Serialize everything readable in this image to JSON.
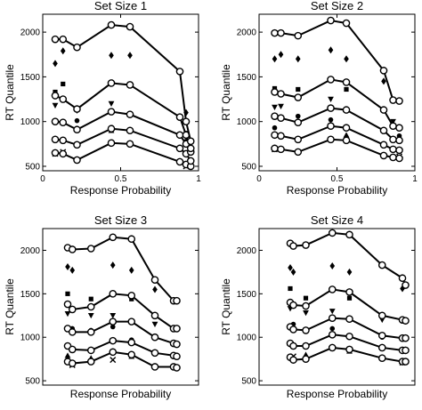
{
  "chart_data": [
    {
      "type": "scatter",
      "title": "Set Size 1",
      "xlabel": "Response Probability",
      "ylabel": "RT Quantile",
      "xlim": [
        0,
        1
      ],
      "ylim": [
        450,
        2200
      ],
      "xticks": [
        0,
        0.5,
        1
      ],
      "xtick_labels": [
        "0",
        "0.5",
        "1"
      ],
      "yticks": [
        500,
        1000,
        1500,
        2000
      ],
      "ytick_labels": [
        "500",
        "1000",
        "1500",
        "2000"
      ],
      "grid": false,
      "legend": "none",
      "x": [
        0.08,
        0.13,
        0.22,
        0.44,
        0.56,
        0.88,
        0.92,
        0.95
      ],
      "quantile_lines": [
        [
          650,
          640,
          570,
          760,
          750,
          550,
          520,
          500
        ],
        [
          800,
          790,
          740,
          920,
          900,
          700,
          640,
          560
        ],
        [
          1000,
          990,
          910,
          1110,
          1080,
          850,
          750,
          660
        ],
        [
          1290,
          1250,
          1140,
          1430,
          1410,
          1050,
          850,
          700
        ],
        [
          1920,
          1920,
          1830,
          2080,
          2060,
          1560,
          1000,
          780
        ]
      ],
      "observed_points": [
        {
          "x": 0.08,
          "y": 1650,
          "marker": "diamond"
        },
        {
          "x": 0.13,
          "y": 1790,
          "marker": "diamond"
        },
        {
          "x": 0.44,
          "y": 1740,
          "marker": "diamond"
        },
        {
          "x": 0.56,
          "y": 1740,
          "marker": "diamond"
        },
        {
          "x": 0.92,
          "y": 1100,
          "marker": "diamond"
        },
        {
          "x": 0.08,
          "y": 1330,
          "marker": "square"
        },
        {
          "x": 0.13,
          "y": 1420,
          "marker": "square"
        },
        {
          "x": 0.56,
          "y": 1420,
          "marker": "square"
        },
        {
          "x": 0.92,
          "y": 870,
          "marker": "square"
        },
        {
          "x": 0.08,
          "y": 1180,
          "marker": "triangle-down"
        },
        {
          "x": 0.22,
          "y": 1120,
          "marker": "triangle-down"
        },
        {
          "x": 0.44,
          "y": 1200,
          "marker": "triangle-down"
        },
        {
          "x": 0.08,
          "y": 1000,
          "marker": "dot"
        },
        {
          "x": 0.22,
          "y": 1010,
          "marker": "dot"
        },
        {
          "x": 0.44,
          "y": 1100,
          "marker": "dot"
        },
        {
          "x": 0.92,
          "y": 780,
          "marker": "dot"
        },
        {
          "x": 0.08,
          "y": 810,
          "marker": "triangle-up"
        },
        {
          "x": 0.44,
          "y": 900,
          "marker": "triangle-up"
        },
        {
          "x": 0.95,
          "y": 660,
          "marker": "triangle-up"
        },
        {
          "x": 0.08,
          "y": 640,
          "marker": "x"
        },
        {
          "x": 0.13,
          "y": 660,
          "marker": "x"
        },
        {
          "x": 0.92,
          "y": 500,
          "marker": "x"
        }
      ]
    },
    {
      "type": "scatter",
      "title": "Set Size 2",
      "xlabel": "Response Probability",
      "ylabel": "RT Quantile",
      "xlim": [
        0,
        1
      ],
      "ylim": [
        450,
        2200
      ],
      "xticks": [
        0,
        0.5,
        1
      ],
      "xtick_labels": [
        "0",
        "0.5",
        "1"
      ],
      "yticks": [
        500,
        1000,
        1500,
        2000
      ],
      "ytick_labels": [
        "500",
        "1000",
        "1500",
        "2000"
      ],
      "grid": false,
      "legend": "none",
      "x": [
        0.1,
        0.14,
        0.25,
        0.46,
        0.56,
        0.8,
        0.86,
        0.9
      ],
      "quantile_lines": [
        [
          700,
          690,
          660,
          800,
          790,
          620,
          600,
          590
        ],
        [
          850,
          840,
          800,
          950,
          930,
          740,
          690,
          680
        ],
        [
          1060,
          1040,
          990,
          1150,
          1130,
          900,
          800,
          790
        ],
        [
          1330,
          1310,
          1270,
          1470,
          1440,
          1130,
          950,
          930
        ],
        [
          1990,
          1990,
          1960,
          2130,
          2100,
          1570,
          1240,
          1230
        ]
      ],
      "observed_points": [
        {
          "x": 0.1,
          "y": 1700,
          "marker": "diamond"
        },
        {
          "x": 0.14,
          "y": 1750,
          "marker": "diamond"
        },
        {
          "x": 0.25,
          "y": 1700,
          "marker": "diamond"
        },
        {
          "x": 0.46,
          "y": 1800,
          "marker": "diamond"
        },
        {
          "x": 0.56,
          "y": 1700,
          "marker": "diamond"
        },
        {
          "x": 0.8,
          "y": 1450,
          "marker": "diamond"
        },
        {
          "x": 0.1,
          "y": 1370,
          "marker": "square"
        },
        {
          "x": 0.25,
          "y": 1360,
          "marker": "square"
        },
        {
          "x": 0.56,
          "y": 1360,
          "marker": "square"
        },
        {
          "x": 0.1,
          "y": 1160,
          "marker": "triangle-down"
        },
        {
          "x": 0.14,
          "y": 1170,
          "marker": "triangle-down"
        },
        {
          "x": 0.46,
          "y": 1250,
          "marker": "triangle-down"
        },
        {
          "x": 0.86,
          "y": 1000,
          "marker": "triangle-down"
        },
        {
          "x": 0.1,
          "y": 930,
          "marker": "dot"
        },
        {
          "x": 0.25,
          "y": 1060,
          "marker": "dot"
        },
        {
          "x": 0.46,
          "y": 1020,
          "marker": "dot"
        },
        {
          "x": 0.9,
          "y": 840,
          "marker": "dot"
        },
        {
          "x": 0.14,
          "y": 850,
          "marker": "triangle-up"
        },
        {
          "x": 0.56,
          "y": 850,
          "marker": "triangle-up"
        },
        {
          "x": 0.1,
          "y": 690,
          "marker": "x"
        },
        {
          "x": 0.9,
          "y": 610,
          "marker": "x"
        }
      ]
    },
    {
      "type": "scatter",
      "title": "Set Size 3",
      "xlabel": "Response Probability",
      "ylabel": "RT Quantile",
      "xlim": [
        0,
        1
      ],
      "ylim": [
        450,
        2250
      ],
      "xticks": [],
      "xtick_labels": [],
      "yticks": [
        500,
        1000,
        1500,
        2000
      ],
      "ytick_labels": [
        "500",
        "1000",
        "1500",
        "2000"
      ],
      "grid": false,
      "legend": "none",
      "x": [
        0.16,
        0.19,
        0.31,
        0.45,
        0.57,
        0.72,
        0.84,
        0.86
      ],
      "quantile_lines": [
        [
          720,
          700,
          720,
          830,
          800,
          660,
          660,
          650
        ],
        [
          900,
          860,
          850,
          960,
          940,
          820,
          790,
          780
        ],
        [
          1100,
          1060,
          1060,
          1180,
          1180,
          1000,
          930,
          920
        ],
        [
          1380,
          1320,
          1350,
          1500,
          1480,
          1250,
          1100,
          1100
        ],
        [
          2030,
          2010,
          2020,
          2150,
          2130,
          1660,
          1420,
          1420
        ]
      ],
      "observed_points": [
        {
          "x": 0.16,
          "y": 1810,
          "marker": "diamond"
        },
        {
          "x": 0.19,
          "y": 1770,
          "marker": "diamond"
        },
        {
          "x": 0.45,
          "y": 1830,
          "marker": "diamond"
        },
        {
          "x": 0.57,
          "y": 1770,
          "marker": "diamond"
        },
        {
          "x": 0.72,
          "y": 1550,
          "marker": "diamond"
        },
        {
          "x": 0.16,
          "y": 1500,
          "marker": "square"
        },
        {
          "x": 0.31,
          "y": 1440,
          "marker": "square"
        },
        {
          "x": 0.57,
          "y": 1440,
          "marker": "square"
        },
        {
          "x": 0.16,
          "y": 1270,
          "marker": "triangle-down"
        },
        {
          "x": 0.31,
          "y": 1250,
          "marker": "triangle-down"
        },
        {
          "x": 0.45,
          "y": 1250,
          "marker": "triangle-down"
        },
        {
          "x": 0.72,
          "y": 1150,
          "marker": "triangle-down"
        },
        {
          "x": 0.19,
          "y": 1100,
          "marker": "dot"
        },
        {
          "x": 0.31,
          "y": 1080,
          "marker": "dot"
        },
        {
          "x": 0.45,
          "y": 1120,
          "marker": "dot"
        },
        {
          "x": 0.57,
          "y": 970,
          "marker": "dot"
        },
        {
          "x": 0.16,
          "y": 790,
          "marker": "triangle-up"
        },
        {
          "x": 0.31,
          "y": 760,
          "marker": "triangle-up"
        },
        {
          "x": 0.57,
          "y": 780,
          "marker": "triangle-up"
        },
        {
          "x": 0.19,
          "y": 680,
          "marker": "x"
        },
        {
          "x": 0.45,
          "y": 740,
          "marker": "x"
        }
      ]
    },
    {
      "type": "scatter",
      "title": "Set Size 4",
      "xlabel": "Response Probability",
      "ylabel": "RT Quantile",
      "xlim": [
        0,
        1
      ],
      "ylim": [
        450,
        2250
      ],
      "xticks": [],
      "xtick_labels": [],
      "yticks": [
        500,
        1000,
        1500,
        2000
      ],
      "ytick_labels": [
        "500",
        "1000",
        "1500",
        "2000"
      ],
      "grid": false,
      "legend": "none",
      "x": [
        0.2,
        0.22,
        0.3,
        0.47,
        0.58,
        0.79,
        0.92,
        0.94
      ],
      "quantile_lines": [
        [
          770,
          740,
          750,
          880,
          860,
          760,
          720,
          720
        ],
        [
          930,
          900,
          900,
          1030,
          1010,
          880,
          850,
          850
        ],
        [
          1120,
          1090,
          1080,
          1220,
          1210,
          1020,
          990,
          990
        ],
        [
          1400,
          1370,
          1360,
          1550,
          1520,
          1250,
          1200,
          1190
        ],
        [
          2080,
          2050,
          2060,
          2200,
          2180,
          1830,
          1680,
          1600
        ]
      ],
      "observed_points": [
        {
          "x": 0.2,
          "y": 1800,
          "marker": "diamond"
        },
        {
          "x": 0.22,
          "y": 1750,
          "marker": "diamond"
        },
        {
          "x": 0.47,
          "y": 1820,
          "marker": "diamond"
        },
        {
          "x": 0.58,
          "y": 1750,
          "marker": "diamond"
        },
        {
          "x": 0.92,
          "y": 1560,
          "marker": "diamond"
        },
        {
          "x": 0.2,
          "y": 1560,
          "marker": "square"
        },
        {
          "x": 0.3,
          "y": 1450,
          "marker": "square"
        },
        {
          "x": 0.58,
          "y": 1450,
          "marker": "square"
        },
        {
          "x": 0.2,
          "y": 1330,
          "marker": "triangle-down"
        },
        {
          "x": 0.3,
          "y": 1280,
          "marker": "triangle-down"
        },
        {
          "x": 0.47,
          "y": 1300,
          "marker": "triangle-down"
        },
        {
          "x": 0.79,
          "y": 1200,
          "marker": "triangle-down"
        },
        {
          "x": 0.22,
          "y": 1150,
          "marker": "dot"
        },
        {
          "x": 0.47,
          "y": 1100,
          "marker": "dot"
        },
        {
          "x": 0.79,
          "y": 1000,
          "marker": "dot"
        },
        {
          "x": 0.2,
          "y": 930,
          "marker": "triangle-up"
        },
        {
          "x": 0.3,
          "y": 800,
          "marker": "triangle-up"
        },
        {
          "x": 0.58,
          "y": 840,
          "marker": "triangle-up"
        },
        {
          "x": 0.22,
          "y": 780,
          "marker": "x"
        },
        {
          "x": 0.92,
          "y": 710,
          "marker": "x"
        }
      ]
    }
  ]
}
